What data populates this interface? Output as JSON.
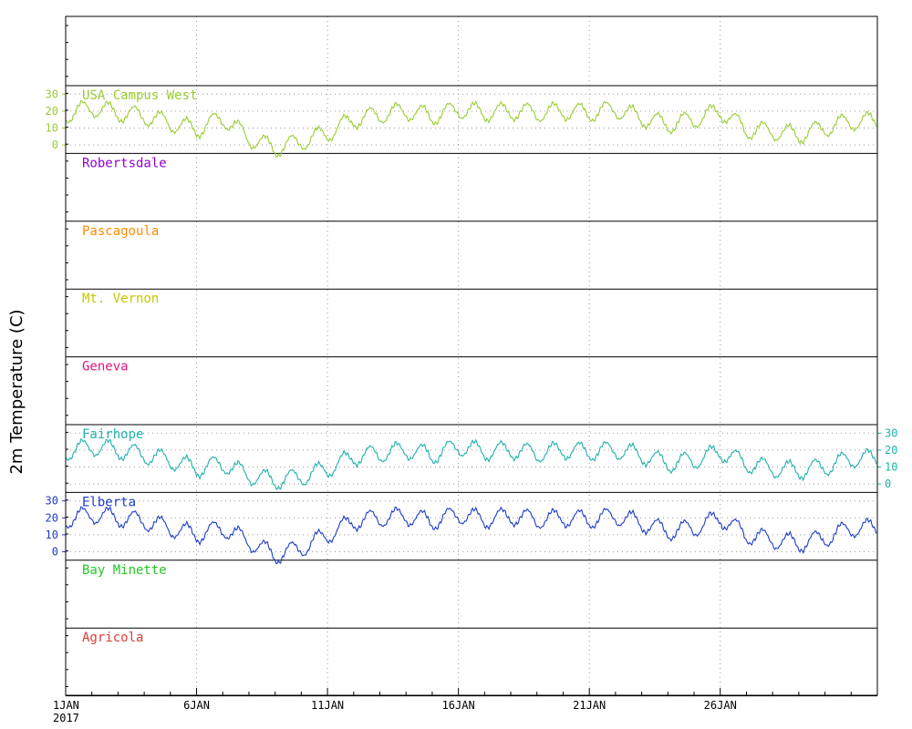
{
  "chart_data": {
    "type": "line",
    "ylabel": "2m Temperature (C)",
    "x_start_label": "1JAN",
    "x_year_label": "2017",
    "x_range": [
      "2017-01-01",
      "2017-01-31"
    ],
    "x_ticks": [
      "6JAN",
      "11JAN",
      "16JAN",
      "21JAN",
      "26JAN"
    ],
    "panel_ylim": [
      -5,
      35
    ],
    "y_ticks": [
      "30",
      "20",
      "10",
      "0"
    ],
    "grid": "dotted",
    "panels": [
      {
        "name": "USA Campus West",
        "color": "#9acd32",
        "axis_side": "left",
        "has_data": true,
        "x": [
          "2017-01-01",
          "2017-01-02",
          "2017-01-03",
          "2017-01-04",
          "2017-01-05",
          "2017-01-06",
          "2017-01-07",
          "2017-01-08",
          "2017-01-09",
          "2017-01-10",
          "2017-01-11",
          "2017-01-12",
          "2017-01-13",
          "2017-01-14",
          "2017-01-15",
          "2017-01-16",
          "2017-01-17",
          "2017-01-18",
          "2017-01-19",
          "2017-01-20",
          "2017-01-21",
          "2017-01-22",
          "2017-01-23",
          "2017-01-24",
          "2017-01-25",
          "2017-01-26",
          "2017-01-27",
          "2017-01-28",
          "2017-01-29",
          "2017-01-30",
          "2017-01-31"
        ],
        "values": [
          18,
          22,
          19,
          17,
          13,
          9,
          16,
          4,
          -2,
          2,
          7,
          15,
          18,
          20,
          17,
          21,
          19,
          20,
          19,
          20,
          19,
          21,
          16,
          12,
          15,
          20,
          9,
          8,
          6,
          10,
          14
        ]
      },
      {
        "name": "Robertsdale",
        "color": "#9400d3",
        "axis_side": "none",
        "has_data": false
      },
      {
        "name": "Pascagoula",
        "color": "#ff8c00",
        "axis_side": "none",
        "has_data": false
      },
      {
        "name": "Mt. Vernon",
        "color": "#c8c800",
        "axis_side": "none",
        "has_data": false
      },
      {
        "name": "Geneva",
        "color": "#e0157a",
        "axis_side": "none",
        "has_data": false
      },
      {
        "name": "Fairhope",
        "color": "#20b2aa",
        "axis_side": "right",
        "has_data": true,
        "x": [
          "2017-01-01",
          "2017-01-02",
          "2017-01-03",
          "2017-01-04",
          "2017-01-05",
          "2017-01-06",
          "2017-01-07",
          "2017-01-08",
          "2017-01-09",
          "2017-01-10",
          "2017-01-11",
          "2017-01-12",
          "2017-01-13",
          "2017-01-14",
          "2017-01-15",
          "2017-01-16",
          "2017-01-17",
          "2017-01-18",
          "2017-01-19",
          "2017-01-20",
          "2017-01-21",
          "2017-01-22",
          "2017-01-23",
          "2017-01-24",
          "2017-01-25",
          "2017-01-26",
          "2017-01-27",
          "2017-01-28",
          "2017-01-29",
          "2017-01-30",
          "2017-01-31"
        ],
        "values": [
          19,
          22,
          20,
          17,
          14,
          9,
          12,
          5,
          2,
          4,
          9,
          16,
          18,
          20,
          17,
          22,
          19,
          20,
          18,
          20,
          19,
          20,
          17,
          12,
          14,
          19,
          12,
          9,
          8,
          10,
          15
        ]
      },
      {
        "name": "Elberta",
        "color": "#1e3cc8",
        "axis_side": "left",
        "has_data": true,
        "x": [
          "2017-01-01",
          "2017-01-02",
          "2017-01-03",
          "2017-01-04",
          "2017-01-05",
          "2017-01-06",
          "2017-01-07",
          "2017-01-08",
          "2017-01-09",
          "2017-01-10",
          "2017-01-11",
          "2017-01-12",
          "2017-01-13",
          "2017-01-14",
          "2017-01-15",
          "2017-01-16",
          "2017-01-17",
          "2017-01-18",
          "2017-01-19",
          "2017-01-20",
          "2017-01-21",
          "2017-01-22",
          "2017-01-23",
          "2017-01-24",
          "2017-01-25",
          "2017-01-26",
          "2017-01-27",
          "2017-01-28",
          "2017-01-29",
          "2017-01-30",
          "2017-01-31"
        ],
        "values": [
          19,
          22,
          20,
          18,
          14,
          10,
          14,
          6,
          -2,
          2,
          10,
          18,
          20,
          21,
          18,
          22,
          19,
          21,
          19,
          20,
          19,
          21,
          17,
          12,
          14,
          20,
          10,
          7,
          5,
          8,
          14
        ]
      },
      {
        "name": "Bay Minette",
        "color": "#22c822",
        "axis_side": "none",
        "has_data": false
      },
      {
        "name": "Agricola",
        "color": "#e03c32",
        "axis_side": "none",
        "has_data": false
      }
    ]
  }
}
